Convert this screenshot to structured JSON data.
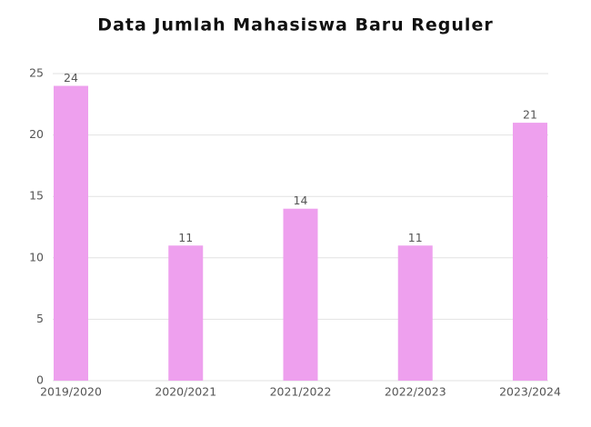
{
  "chart_data": {
    "type": "bar",
    "title": "Data Jumlah Mahasiswa Baru Reguler",
    "categories": [
      "2019/2020",
      "2020/2021",
      "2021/2022",
      "2022/2023",
      "2023/2024"
    ],
    "values": [
      24,
      11,
      14,
      11,
      21
    ],
    "color": "#eea0ee",
    "ylim": [
      0,
      25
    ],
    "yticks": [
      0,
      5,
      10,
      15,
      20,
      25
    ],
    "grid": true
  }
}
